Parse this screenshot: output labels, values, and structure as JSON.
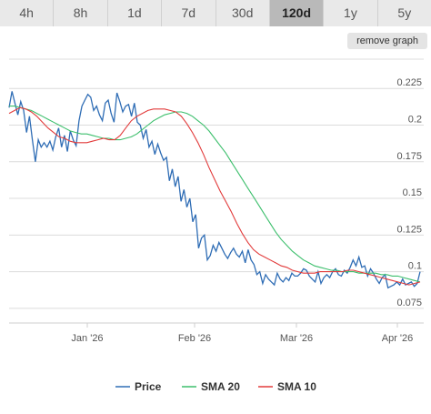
{
  "tabs": [
    {
      "label": "4h",
      "active": false
    },
    {
      "label": "8h",
      "active": false
    },
    {
      "label": "1d",
      "active": false
    },
    {
      "label": "7d",
      "active": false
    },
    {
      "label": "30d",
      "active": false
    },
    {
      "label": "120d",
      "active": true
    },
    {
      "label": "1y",
      "active": false
    },
    {
      "label": "5y",
      "active": false
    }
  ],
  "remove_graph_label": "remove graph",
  "chart_data": {
    "type": "line",
    "title": "",
    "xlabel": "",
    "ylabel": "",
    "ylim": [
      0.065,
      0.245
    ],
    "y_ticks": [
      "0.075",
      "0.1",
      "0.125",
      "0.15",
      "0.175",
      "0.2",
      "0.225"
    ],
    "x_ticks": [
      "Jan '26",
      "Feb '26",
      "Mar '26",
      "Apr '26"
    ],
    "grid": true,
    "legend_position": "bottom",
    "series": [
      {
        "name": "Price",
        "color": "#2f6db5",
        "values": [
          0.212,
          0.223,
          0.215,
          0.207,
          0.216,
          0.21,
          0.195,
          0.206,
          0.19,
          0.175,
          0.19,
          0.185,
          0.188,
          0.185,
          0.189,
          0.183,
          0.192,
          0.198,
          0.185,
          0.193,
          0.182,
          0.196,
          0.19,
          0.186,
          0.203,
          0.213,
          0.217,
          0.221,
          0.219,
          0.21,
          0.213,
          0.207,
          0.203,
          0.215,
          0.217,
          0.208,
          0.202,
          0.222,
          0.216,
          0.209,
          0.213,
          0.214,
          0.206,
          0.215,
          0.202,
          0.2,
          0.191,
          0.197,
          0.185,
          0.189,
          0.18,
          0.187,
          0.181,
          0.176,
          0.178,
          0.162,
          0.17,
          0.158,
          0.165,
          0.148,
          0.156,
          0.144,
          0.15,
          0.134,
          0.139,
          0.116,
          0.123,
          0.125,
          0.108,
          0.111,
          0.118,
          0.114,
          0.12,
          0.116,
          0.112,
          0.109,
          0.113,
          0.116,
          0.112,
          0.11,
          0.114,
          0.106,
          0.115,
          0.108,
          0.105,
          0.098,
          0.1,
          0.092,
          0.098,
          0.095,
          0.093,
          0.091,
          0.099,
          0.095,
          0.093,
          0.096,
          0.094,
          0.099,
          0.097,
          0.097,
          0.099,
          0.102,
          0.101,
          0.097,
          0.095,
          0.093,
          0.1,
          0.092,
          0.096,
          0.098,
          0.096,
          0.1,
          0.102,
          0.098,
          0.097,
          0.101,
          0.099,
          0.103,
          0.108,
          0.104,
          0.11,
          0.103,
          0.104,
          0.097,
          0.102,
          0.099,
          0.095,
          0.092,
          0.096,
          0.098,
          0.089,
          0.09,
          0.091,
          0.093,
          0.091,
          0.095,
          0.091,
          0.092,
          0.093,
          0.09,
          0.092,
          0.1
        ]
      },
      {
        "name": "SMA 20",
        "color": "#3cbf6c",
        "values": [
          0.213,
          0.213,
          0.212,
          0.211,
          0.21,
          0.208,
          0.206,
          0.204,
          0.202,
          0.2,
          0.198,
          0.196,
          0.195,
          0.194,
          0.194,
          0.193,
          0.192,
          0.191,
          0.191,
          0.19,
          0.19,
          0.191,
          0.192,
          0.194,
          0.197,
          0.2,
          0.203,
          0.205,
          0.207,
          0.208,
          0.209,
          0.209,
          0.208,
          0.206,
          0.203,
          0.2,
          0.196,
          0.191,
          0.186,
          0.181,
          0.175,
          0.169,
          0.163,
          0.157,
          0.151,
          0.145,
          0.139,
          0.133,
          0.127,
          0.122,
          0.118,
          0.114,
          0.111,
          0.108,
          0.106,
          0.104,
          0.103,
          0.102,
          0.101,
          0.101,
          0.1,
          0.1,
          0.1,
          0.099,
          0.099,
          0.099,
          0.099,
          0.098,
          0.098,
          0.097,
          0.097,
          0.096,
          0.095,
          0.094,
          0.093
        ]
      },
      {
        "name": "SMA 10",
        "color": "#e23b3b",
        "values": [
          0.208,
          0.21,
          0.212,
          0.211,
          0.209,
          0.206,
          0.202,
          0.198,
          0.195,
          0.192,
          0.191,
          0.189,
          0.188,
          0.188,
          0.188,
          0.189,
          0.19,
          0.191,
          0.19,
          0.19,
          0.193,
          0.198,
          0.203,
          0.206,
          0.208,
          0.21,
          0.211,
          0.211,
          0.211,
          0.21,
          0.209,
          0.206,
          0.201,
          0.195,
          0.188,
          0.18,
          0.171,
          0.163,
          0.155,
          0.148,
          0.141,
          0.133,
          0.126,
          0.12,
          0.115,
          0.112,
          0.11,
          0.108,
          0.106,
          0.104,
          0.103,
          0.101,
          0.1,
          0.099,
          0.099,
          0.099,
          0.1,
          0.1,
          0.1,
          0.1,
          0.1,
          0.101,
          0.101,
          0.1,
          0.099,
          0.098,
          0.097,
          0.096,
          0.095,
          0.094,
          0.093,
          0.092,
          0.091,
          0.092,
          0.093
        ]
      }
    ]
  }
}
